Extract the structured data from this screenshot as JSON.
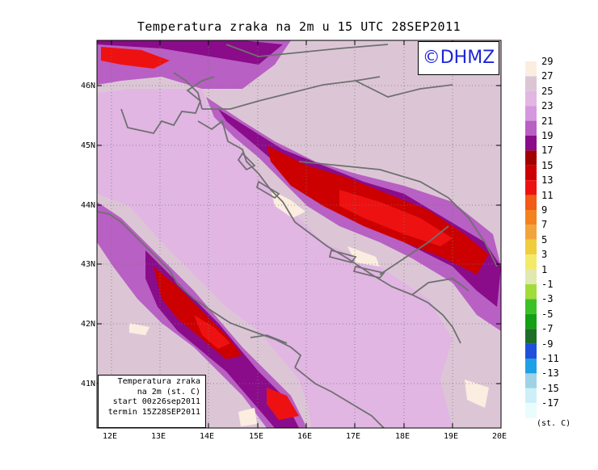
{
  "title": "Temperatura zraka na 2m u 15 UTC 28SEP2011",
  "logo_text": "©DHMZ",
  "lat_labels": [
    "46N",
    "45N",
    "44N",
    "43N",
    "42N",
    "41N"
  ],
  "lon_labels": [
    "12E",
    "13E",
    "14E",
    "15E",
    "16E",
    "17E",
    "18E",
    "19E",
    "20E"
  ],
  "info_box": {
    "line1": "Temperatura zraka",
    "line2": "na 2m (st. C)",
    "line3": "start 00z26sep2011",
    "line4": "termin 15Z28SEP2011"
  },
  "legend": {
    "units": "(st. C)",
    "labels": [
      "29",
      "27",
      "25",
      "23",
      "21",
      "19",
      "17",
      "15",
      "13",
      "11",
      "9",
      "7",
      "5",
      "3",
      "1",
      "-1",
      "-3",
      "-5",
      "-7",
      "-9",
      "-11",
      "-13",
      "-15",
      "-17"
    ],
    "colors": [
      "#fbeee0",
      "#dcc6d6",
      "#e1b6e3",
      "#d597dd",
      "#b860c3",
      "#8a0c8a",
      "#a30000",
      "#cc0000",
      "#ee1111",
      "#f15b15",
      "#f4821e",
      "#f2a43c",
      "#f0cd3c",
      "#f3ea6a",
      "#e1e8b0",
      "#a0dc3a",
      "#3cc028",
      "#14a014",
      "#1e6e28",
      "#1e50dc",
      "#1ea0e6",
      "#9ed2e6",
      "#cdf0f8",
      "#eafcfc"
    ]
  },
  "map_colors": {
    "sea": "#e1b6e3",
    "land": "#dcc6d6",
    "warm": "#b860c3",
    "hot": "#8a0c8a",
    "hotter": "#cc0000",
    "hottest": "#ee1111",
    "cool": "#fbeee0",
    "coast": "#707070"
  }
}
